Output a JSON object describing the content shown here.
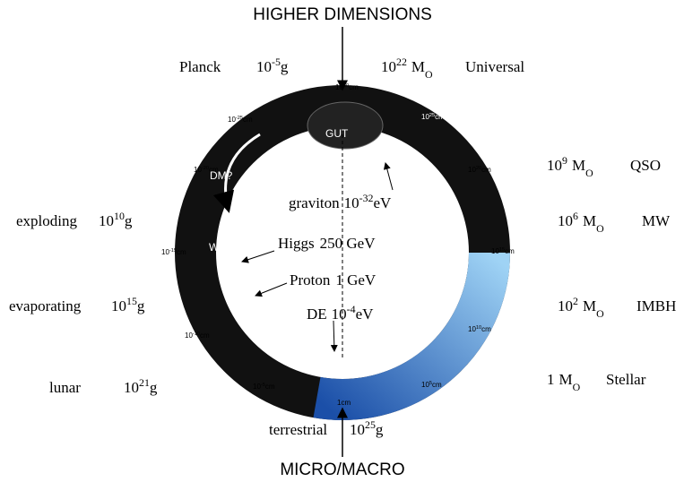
{
  "top_label": "HIGHER DIMENSIONS",
  "bottom_label": "MICRO/MACRO",
  "left_masses": [
    {
      "name": "Planck",
      "base": "10",
      "exp": "-5",
      "unit": "g"
    },
    {
      "name": "exploding",
      "base": "10",
      "exp": "10",
      "unit": "g"
    },
    {
      "name": "evaporating",
      "base": "10",
      "exp": "15",
      "unit": "g"
    },
    {
      "name": "lunar",
      "base": "10",
      "exp": "21",
      "unit": "g"
    },
    {
      "name": "terrestrial",
      "base": "10",
      "exp": "25",
      "unit": "g"
    }
  ],
  "right_masses": [
    {
      "base": "10",
      "exp": "22",
      "unit": "M",
      "unit_sub": "O",
      "name": "Universal"
    },
    {
      "base": "10",
      "exp": "9",
      "unit": "M",
      "unit_sub": "O",
      "name": "QSO"
    },
    {
      "base": "10",
      "exp": "6",
      "unit": "M",
      "unit_sub": "O",
      "name": "MW"
    },
    {
      "base": "10",
      "exp": "2",
      "unit": "M",
      "unit_sub": "O",
      "name": "IMBH"
    },
    {
      "base": "1",
      "unit": "M",
      "unit_sub": "O",
      "name": "Stellar"
    }
  ],
  "particles": [
    {
      "name": "graviton",
      "base": "10",
      "exp": "-32",
      "unit": "eV"
    },
    {
      "name": "Higgs",
      "value": "250 GeV"
    },
    {
      "name": "Proton",
      "value": "1 GeV"
    },
    {
      "name": "DE",
      "base": "10",
      "exp": "-4",
      "unit": "eV"
    }
  ],
  "ring_scales": [
    {
      "base": "10",
      "exp": "30",
      "unit": "cm"
    },
    {
      "base": "10",
      "exp": "25",
      "unit": "cm"
    },
    {
      "base": "10",
      "exp": "20",
      "unit": "cm"
    },
    {
      "base": "10",
      "exp": "15",
      "unit": "cm"
    },
    {
      "base": "10",
      "exp": "10",
      "unit": "cm"
    },
    {
      "base": "10",
      "exp": "5",
      "unit": "cm"
    },
    {
      "base": "1",
      "unit": "cm"
    },
    {
      "base": "10",
      "exp": "-5",
      "unit": "cm"
    },
    {
      "base": "10",
      "exp": "-10",
      "unit": "cm"
    },
    {
      "base": "10",
      "exp": "-15",
      "unit": "cm"
    },
    {
      "base": "10",
      "exp": "-20",
      "unit": "cm"
    },
    {
      "base": "10",
      "exp": "-25",
      "unit": "cm"
    }
  ],
  "ring_icons": [
    "GUT",
    "DM?",
    "W,Z"
  ]
}
